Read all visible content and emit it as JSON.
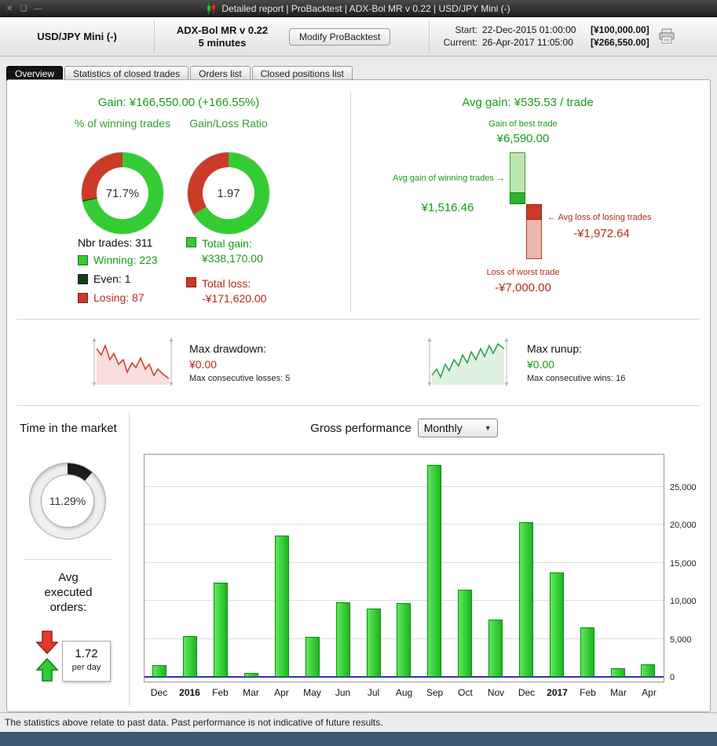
{
  "titlebar": {
    "controls": [
      "✕",
      "❑",
      "—"
    ],
    "title": "Detailed report | ProBacktest | ADX-Bol MR v 0.22 | USD/JPY Mini (-)"
  },
  "icons": {
    "dropdown_arrow": "▼",
    "right_arrow": "→",
    "left_arrow": "←"
  },
  "header": {
    "instrument": "USD/JPY Mini (-)",
    "strategy_name": "ADX-Bol MR v 0.22",
    "strategy_timeframe": "5 minutes",
    "modify_button": "Modify ProBacktest",
    "start_label": "Start:",
    "start_datetime": "22-Dec-2015 01:00:00",
    "start_equity": "[¥100,000.00]",
    "current_label": "Current:",
    "current_datetime": "26-Apr-2017 11:05:00",
    "current_equity": "[¥266,550.00]"
  },
  "tabs": [
    {
      "label": "Overview",
      "active": true
    },
    {
      "label": "Statistics of closed trades",
      "active": false
    },
    {
      "label": "Orders list",
      "active": false
    },
    {
      "label": "Closed positions list",
      "active": false
    }
  ],
  "overview": {
    "gain_line": "Gain: ¥166,550.00 (+166.55%)",
    "winning_donut": {
      "title": "% of winning trades",
      "center_label": "71.7%",
      "segments": [
        {
          "name": "winning",
          "color": "#33cc33",
          "pct": 71.7
        },
        {
          "name": "even",
          "color": "#173f17",
          "pct": 0.5
        },
        {
          "name": "losing",
          "color": "#cc3a28",
          "pct": 27.8
        }
      ]
    },
    "ratio_donut": {
      "title": "Gain/Loss Ratio",
      "center_label": "1.97",
      "segments": [
        {
          "name": "gain",
          "color": "#33cc33",
          "pct": 66.3
        },
        {
          "name": "loss",
          "color": "#cc3a28",
          "pct": 33.7
        }
      ]
    },
    "nbr_trades": "Nbr trades: 311",
    "legend": [
      {
        "label": "Winning: 223",
        "swatch": "#33cc33",
        "text_color": "#169c16"
      },
      {
        "label": "Even: 1",
        "swatch": "#173f17",
        "text_color": "#111111"
      },
      {
        "label": "Losing: 87",
        "swatch": "#cc3a28",
        "text_color": "#b32b1b"
      }
    ],
    "totals": [
      {
        "label": "Total gain:",
        "value": "¥338,170.00",
        "swatch": "#33cc33",
        "text_color": "#169c16"
      },
      {
        "label": "Total loss:",
        "value": "-¥171,620.00",
        "swatch": "#cc3a28",
        "text_color": "#b32b1b"
      }
    ],
    "avg_gain_line": "Avg gain: ¥535.53 / trade",
    "best_trade_label": "Gain of best trade",
    "best_trade_value": "¥6,590.00",
    "avg_win_label": "Avg gain of winning trades",
    "avg_win_value": "¥1,516.46",
    "avg_loss_label": "Avg loss of losing trades",
    "avg_loss_value": "-¥1,972.64",
    "worst_trade_label": "Loss of worst trade",
    "worst_trade_value": "-¥7,000.00"
  },
  "drawdown": {
    "title": "Max drawdown:",
    "value": "¥0.00",
    "subtext": "Max consecutive losses: 5"
  },
  "runup": {
    "title": "Max runup:",
    "value": "¥0.00",
    "subtext": "Max consecutive wins: 16"
  },
  "time_in_market": {
    "title": "Time in the market",
    "center_label": "11.29%",
    "segments": [
      {
        "name": "in-market",
        "color": "#1c1c1c",
        "pct": 11.29
      },
      {
        "name": "out-of-market",
        "color": "#efefef",
        "pct": 88.71
      }
    ]
  },
  "avg_orders": {
    "title": "Avg executed orders:",
    "value": "1.72",
    "unit": "per day"
  },
  "performance": {
    "title": "Gross performance",
    "period_selected": "Monthly"
  },
  "chart_data": {
    "type": "bar",
    "title": "Gross performance (Monthly)",
    "categories": [
      "Dec",
      "2016",
      "Feb",
      "Mar",
      "Apr",
      "May",
      "Jun",
      "Jul",
      "Aug",
      "Sep",
      "Oct",
      "Nov",
      "Dec",
      "2017",
      "Feb",
      "Mar",
      "Apr"
    ],
    "values": [
      1500,
      5400,
      12400,
      500,
      18600,
      5300,
      9800,
      9000,
      9700,
      27800,
      11400,
      7500,
      20300,
      13700,
      6500,
      1100,
      1700
    ],
    "bold_categories": [
      "2016",
      "2017"
    ],
    "yticks": [
      0,
      5000,
      10000,
      15000,
      20000,
      25000
    ],
    "ytick_labels": [
      "0",
      "5,000",
      "10,000",
      "15,000",
      "20,000",
      "25,000"
    ],
    "ylim": [
      0,
      29300
    ],
    "grid": true,
    "legend_position": "none",
    "bar_color_light": "#5fe85f",
    "bar_color": "#1db51d",
    "bar_border": "#0c8c0c",
    "zero_line_color": "#2a35b0"
  },
  "footer": {
    "text": "The statistics above relate to past data. Past performance is not indicative of future results."
  }
}
